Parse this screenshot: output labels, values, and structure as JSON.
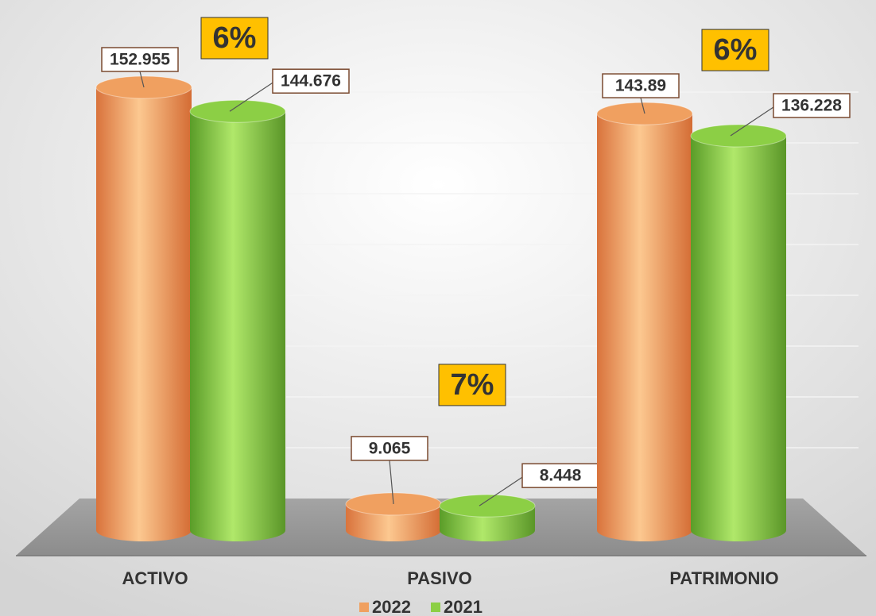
{
  "chart_data": {
    "type": "bar",
    "categories": [
      "ACTIVO",
      "PASIVO",
      "PATRIMONIO"
    ],
    "series": [
      {
        "name": "2022",
        "color": "#f0a060",
        "values": [
          152.955,
          9.065,
          143.89
        ]
      },
      {
        "name": "2021",
        "color": "#8ccf45",
        "values": [
          144.676,
          8.448,
          136.228
        ]
      }
    ],
    "annotations": [
      "6%",
      "7%",
      "6%"
    ],
    "legend": "bottom"
  }
}
